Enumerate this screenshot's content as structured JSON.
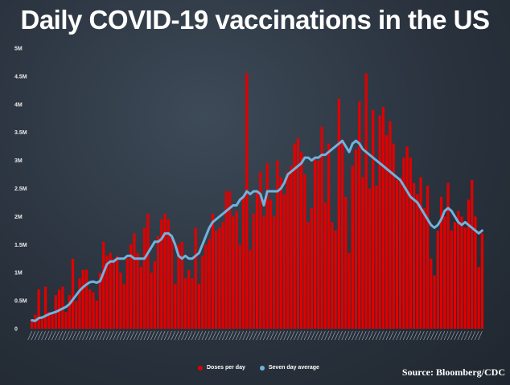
{
  "chart_data": {
    "type": "bar",
    "title": "Daily COVID-19 vaccinations in the US",
    "source": "Source: Bloomberg/CDC",
    "ylim": [
      0,
      5000000
    ],
    "y_ticks": [
      {
        "value": 0,
        "label": "0"
      },
      {
        "value": 500000,
        "label": "0.5M"
      },
      {
        "value": 1000000,
        "label": "1M"
      },
      {
        "value": 1500000,
        "label": "1.5M"
      },
      {
        "value": 2000000,
        "label": "2M"
      },
      {
        "value": 2500000,
        "label": "2.5M"
      },
      {
        "value": 3000000,
        "label": "3M"
      },
      {
        "value": 3500000,
        "label": "3.5M"
      },
      {
        "value": 4000000,
        "label": "4M"
      },
      {
        "value": 4500000,
        "label": "4.5M"
      },
      {
        "value": 5000000,
        "label": "5M"
      }
    ],
    "grid": false,
    "legend_position": "bottom-center",
    "colors": {
      "bars": "#e00000",
      "line": "#6fb3df"
    },
    "series": [
      {
        "name": "Doses per day",
        "kind": "bar",
        "values": [
          150000,
          250000,
          700000,
          200000,
          750000,
          300000,
          250000,
          600000,
          700000,
          750000,
          300000,
          600000,
          1250000,
          500000,
          900000,
          1050000,
          1050000,
          700000,
          650000,
          500000,
          1000000,
          1550000,
          1300000,
          1350000,
          1250000,
          1300000,
          1000000,
          800000,
          1250000,
          1500000,
          1700000,
          1350000,
          1100000,
          1800000,
          2050000,
          1000000,
          1200000,
          1650000,
          1950000,
          2050000,
          1950000,
          1650000,
          800000,
          1500000,
          1550000,
          900000,
          1050000,
          900000,
          1800000,
          800000,
          1300000,
          1500000,
          1600000,
          2050000,
          1750000,
          1800000,
          1900000,
          2450000,
          2450000,
          2000000,
          2100000,
          1500000,
          2350000,
          4550000,
          1400000,
          2050000,
          2450000,
          2800000,
          2000000,
          2950000,
          2300000,
          2000000,
          3000000,
          2700000,
          2400000,
          2800000,
          2900000,
          3300000,
          3400000,
          3150000,
          2750000,
          1900000,
          2150000,
          3050000,
          3000000,
          3600000,
          2250000,
          3300000,
          1900000,
          1750000,
          4100000,
          3350000,
          2350000,
          1350000,
          2900000,
          3200000,
          4050000,
          2700000,
          4550000,
          2500000,
          3900000,
          2550000,
          3800000,
          3950000,
          3450000,
          3700000,
          3300000,
          2650000,
          2700000,
          3050000,
          3250000,
          3050000,
          2600000,
          2400000,
          2700000,
          2150000,
          2550000,
          1250000,
          950000,
          1750000,
          2350000,
          2000000,
          2600000,
          1750000,
          1900000,
          2100000,
          2000000,
          1800000,
          2300000,
          2650000,
          2000000,
          1100000,
          1700000
        ]
      },
      {
        "name": "Seven day average",
        "kind": "line",
        "values": [
          150000,
          140000,
          190000,
          200000,
          230000,
          260000,
          280000,
          300000,
          330000,
          360000,
          390000,
          440000,
          520000,
          600000,
          680000,
          740000,
          790000,
          830000,
          840000,
          820000,
          850000,
          1000000,
          1150000,
          1200000,
          1200000,
          1250000,
          1250000,
          1250000,
          1300000,
          1300000,
          1250000,
          1250000,
          1250000,
          1250000,
          1350000,
          1450000,
          1550000,
          1550000,
          1600000,
          1700000,
          1700000,
          1650000,
          1500000,
          1300000,
          1250000,
          1300000,
          1250000,
          1250000,
          1300000,
          1350000,
          1500000,
          1650000,
          1800000,
          1900000,
          1950000,
          2000000,
          2050000,
          2100000,
          2150000,
          2200000,
          2200000,
          2300000,
          2350000,
          2450000,
          2400000,
          2450000,
          2450000,
          2400000,
          2200000,
          2450000,
          2450000,
          2450000,
          2450000,
          2500000,
          2600000,
          2750000,
          2800000,
          2850000,
          2900000,
          2950000,
          3050000,
          3050000,
          3000000,
          3050000,
          3050000,
          3100000,
          3100000,
          3150000,
          3200000,
          3250000,
          3300000,
          3350000,
          3250000,
          3150000,
          3300000,
          3350000,
          3300000,
          3200000,
          3150000,
          3100000,
          3050000,
          3000000,
          2950000,
          2900000,
          2850000,
          2800000,
          2750000,
          2700000,
          2650000,
          2550000,
          2450000,
          2350000,
          2300000,
          2250000,
          2150000,
          2050000,
          1950000,
          1850000,
          1800000,
          1850000,
          1950000,
          2100000,
          2150000,
          2100000,
          2000000,
          1900000,
          1850000,
          1900000,
          1850000,
          1800000,
          1750000,
          1700000,
          1750000
        ]
      }
    ]
  }
}
